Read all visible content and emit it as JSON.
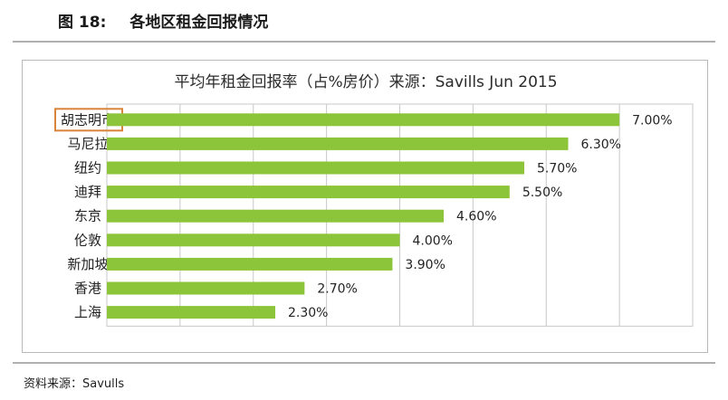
{
  "figure": {
    "number": "图 18:",
    "title": "各地区租金回报情况"
  },
  "source": "资料来源：Savulls",
  "colors": {
    "bar": "#8cc43a",
    "highlight_box": "#d9843a",
    "grid": "#c8c8c8"
  },
  "chart_data": {
    "type": "bar",
    "orientation": "horizontal",
    "title": "平均年租金回报率（占%房价）来源：Savills Jun 2015",
    "categories": [
      "胡志明市",
      "马尼拉",
      "纽约",
      "迪拜",
      "东京",
      "伦敦",
      "新加坡",
      "香港",
      "上海"
    ],
    "values": [
      7.0,
      6.3,
      5.7,
      5.5,
      4.6,
      4.0,
      3.9,
      2.7,
      2.3
    ],
    "data_labels": [
      "7.00%",
      "6.30%",
      "5.70%",
      "5.50%",
      "4.60%",
      "4.00%",
      "3.90%",
      "2.70%",
      "2.30%"
    ],
    "xlim": [
      0,
      8
    ],
    "grid": true,
    "highlighted_category": "胡志明市"
  }
}
